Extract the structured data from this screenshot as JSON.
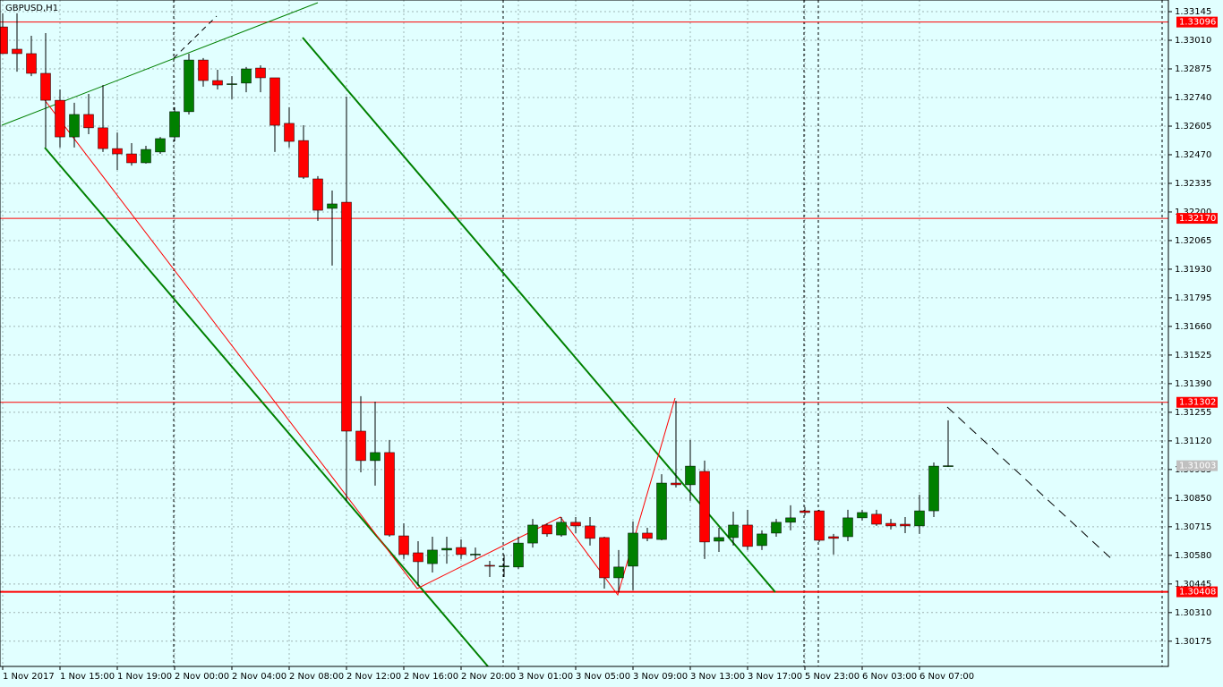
{
  "chart_data": {
    "type": "candlestick",
    "title": "GBPUSD,H1",
    "categories": [
      "1 Nov 2017",
      null,
      null,
      null,
      "1 Nov 15:00",
      null,
      null,
      null,
      "1 Nov 19:00",
      null,
      null,
      null,
      "2 Nov 00:00",
      null,
      null,
      null,
      "2 Nov 04:00",
      null,
      null,
      null,
      "2 Nov 08:00",
      null,
      null,
      null,
      "2 Nov 12:00",
      null,
      null,
      null,
      "2 Nov 16:00",
      null,
      null,
      null,
      "2 Nov 20:00",
      null,
      null,
      null,
      "3 Nov 01:00",
      null,
      null,
      null,
      "3 Nov 05:00",
      null,
      null,
      null,
      "3 Nov 09:00",
      null,
      null,
      null,
      "3 Nov 13:00",
      null,
      null,
      null,
      "3 Nov 17:00",
      null,
      null,
      null,
      "5 Nov 23:00",
      null,
      null,
      null,
      "6 Nov 03:00",
      null,
      null,
      null,
      "6 Nov 07:00",
      null,
      null
    ],
    "open": [
      1.33073,
      1.32968,
      1.32947,
      1.32854,
      1.32727,
      1.32554,
      1.3266,
      1.32597,
      1.32499,
      1.32474,
      1.32432,
      1.32483,
      1.32554,
      1.32673,
      1.32917,
      1.3282,
      1.32803,
      1.32808,
      1.32879,
      1.32833,
      1.32618,
      1.32537,
      1.32356,
      1.32217,
      1.32246,
      1.31166,
      1.31027,
      1.31065,
      1.30672,
      1.30592,
      1.30541,
      1.30605,
      1.30617,
      1.30584,
      1.30533,
      1.30529,
      1.30525,
      1.30638,
      1.30723,
      1.30676,
      1.30736,
      1.30719,
      1.30664,
      1.30474,
      1.30529,
      1.30685,
      1.30655,
      1.30921,
      1.30913,
      1.30976,
      1.30647,
      1.30664,
      1.30723,
      1.30626,
      1.30685,
      1.30736,
      1.3079,
      1.3079,
      1.30668,
      1.30668,
      1.30757,
      1.30774,
      1.30731,
      1.30727,
      1.30719,
      1.3079,
      1.31001
    ],
    "high": [
      1.33137,
      1.33137,
      1.33031,
      1.33044,
      1.32778,
      1.32715,
      1.32757,
      1.32799,
      1.32575,
      1.32525,
      1.32512,
      1.32554,
      1.32694,
      1.32947,
      1.32926,
      1.32871,
      1.32841,
      1.32884,
      1.32892,
      1.32833,
      1.32694,
      1.32609,
      1.32369,
      1.32301,
      1.32744,
      1.31331,
      1.31305,
      1.31124,
      1.30731,
      1.30647,
      1.30668,
      1.30668,
      1.30655,
      1.30617,
      1.30554,
      1.30584,
      1.30668,
      1.30752,
      1.30731,
      1.30761,
      1.30761,
      1.30761,
      1.30668,
      1.30605,
      1.3074,
      1.3071,
      1.30963,
      1.31309,
      1.31124,
      1.31027,
      1.3071,
      1.30786,
      1.30795,
      1.30698,
      1.30752,
      1.30816,
      1.30807,
      1.30795,
      1.30681,
      1.30795,
      1.30795,
      1.30795,
      1.30752,
      1.30761,
      1.30866,
      1.31018,
      1.31217
    ],
    "low": [
      1.32947,
      1.32862,
      1.32841,
      1.32504,
      1.32504,
      1.32504,
      1.32567,
      1.32483,
      1.32398,
      1.32419,
      1.32428,
      1.32474,
      1.32533,
      1.3266,
      1.32791,
      1.32778,
      1.32732,
      1.32765,
      1.32765,
      1.32483,
      1.32504,
      1.32356,
      1.32158,
      1.31947,
      1.30837,
      1.30972,
      1.30909,
      1.30668,
      1.30563,
      1.30436,
      1.30499,
      1.30541,
      1.30563,
      1.30563,
      1.30478,
      1.30478,
      1.30516,
      1.30617,
      1.30668,
      1.30668,
      1.30685,
      1.30626,
      1.30423,
      1.30406,
      1.30415,
      1.30647,
      1.30651,
      1.309,
      1.30837,
      1.30563,
      1.30596,
      1.30626,
      1.30605,
      1.30605,
      1.30668,
      1.30698,
      1.30769,
      1.30643,
      1.30584,
      1.30647,
      1.30744,
      1.30719,
      1.30702,
      1.30685,
      1.30681,
      1.30761,
      1.30997
    ],
    "close": [
      1.32947,
      1.32947,
      1.32854,
      1.32727,
      1.32554,
      1.3266,
      1.32597,
      1.32499,
      1.32474,
      1.32432,
      1.32495,
      1.32546,
      1.32673,
      1.32917,
      1.3282,
      1.32799,
      1.32805,
      1.32875,
      1.32833,
      1.32609,
      1.32533,
      1.32364,
      1.32208,
      1.32238,
      1.31166,
      1.31027,
      1.31065,
      1.30676,
      1.30584,
      1.3055,
      1.30605,
      1.30613,
      1.30584,
      1.30586,
      1.30531,
      1.3053,
      1.30638,
      1.30723,
      1.30681,
      1.30736,
      1.30719,
      1.3066,
      1.30474,
      1.30525,
      1.30685,
      1.3066,
      1.30921,
      1.30913,
      1.31001,
      1.30643,
      1.30664,
      1.30723,
      1.30622,
      1.30681,
      1.30736,
      1.30757,
      1.30782,
      1.30651,
      1.3066,
      1.30757,
      1.30782,
      1.30727,
      1.30719,
      1.30719,
      1.3079,
      1.31001,
      1.31003
    ],
    "up_color": "#008000",
    "down_color": "#ff0000",
    "ylim": [
      1.30056,
      1.332
    ],
    "yticks": [
      {
        "value": 1.33145,
        "label": "1.33145"
      },
      {
        "value": 1.3301,
        "label": "1.33010"
      },
      {
        "value": 1.32875,
        "label": "1.32875"
      },
      {
        "value": 1.3274,
        "label": "1.32740"
      },
      {
        "value": 1.32605,
        "label": "1.32605"
      },
      {
        "value": 1.3247,
        "label": "1.32470"
      },
      {
        "value": 1.32335,
        "label": "1.32335"
      },
      {
        "value": 1.322,
        "label": "1.32200"
      },
      {
        "value": 1.32065,
        "label": "1.32065"
      },
      {
        "value": 1.3193,
        "label": "1.31930"
      },
      {
        "value": 1.31795,
        "label": "1.31795"
      },
      {
        "value": 1.3166,
        "label": "1.31660"
      },
      {
        "value": 1.31525,
        "label": "1.31525"
      },
      {
        "value": 1.3139,
        "label": "1.31390"
      },
      {
        "value": 1.31255,
        "label": "1.31255"
      },
      {
        "value": 1.3112,
        "label": "1.31120"
      },
      {
        "value": 1.30985,
        "label": "1.30985"
      },
      {
        "value": 1.3085,
        "label": "1.30850"
      },
      {
        "value": 1.30715,
        "label": "1.30715"
      },
      {
        "value": 1.3058,
        "label": "1.30580"
      },
      {
        "value": 1.30445,
        "label": "1.30445"
      },
      {
        "value": 1.3031,
        "label": "1.30310"
      },
      {
        "value": 1.30175,
        "label": "1.30175"
      }
    ],
    "levels": [
      {
        "value": 1.33096,
        "label": "1.33096"
      },
      {
        "value": 1.3217,
        "label": "1.32170"
      },
      {
        "value": 1.31302,
        "label": "1.31302"
      },
      {
        "value": 1.30408,
        "label": "1.30408"
      }
    ],
    "level_color": "#ff0000",
    "last_price": 1.31003,
    "grid": true
  }
}
